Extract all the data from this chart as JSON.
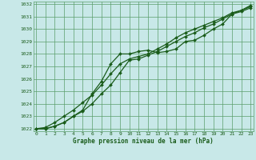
{
  "title": "Graphe pression niveau de la mer (hPa)",
  "background_color": "#c8e8e8",
  "plot_bg_color": "#c8e8e8",
  "grid_color": "#5a9e6a",
  "line_color": "#1a5c1a",
  "marker_color": "#1a5c1a",
  "xlim": [
    -0.3,
    23.3
  ],
  "ylim": [
    1021.8,
    1032.2
  ],
  "xticks": [
    0,
    1,
    2,
    3,
    4,
    5,
    6,
    7,
    8,
    9,
    10,
    11,
    12,
    13,
    14,
    15,
    16,
    17,
    18,
    19,
    20,
    21,
    22,
    23
  ],
  "yticks": [
    1022,
    1023,
    1024,
    1025,
    1026,
    1027,
    1028,
    1029,
    1030,
    1031,
    1032
  ],
  "series1_x": [
    0,
    1,
    2,
    3,
    4,
    5,
    6,
    7,
    8,
    9,
    10,
    11,
    12,
    13,
    14,
    15,
    16,
    17,
    18,
    19,
    20,
    21,
    22,
    23
  ],
  "series1_y": [
    1022.0,
    1022.0,
    1022.2,
    1022.5,
    1023.0,
    1023.5,
    1024.8,
    1025.8,
    1027.2,
    1028.0,
    1028.0,
    1028.2,
    1028.3,
    1028.1,
    1028.2,
    1028.4,
    1029.0,
    1029.1,
    1029.5,
    1030.0,
    1030.4,
    1031.2,
    1031.4,
    1031.7
  ],
  "series2_x": [
    0,
    1,
    2,
    3,
    4,
    5,
    6,
    7,
    8,
    9,
    10,
    11,
    12,
    13,
    14,
    15,
    16,
    17,
    18,
    19,
    20,
    21,
    22,
    23
  ],
  "series2_y": [
    1022.0,
    1022.0,
    1022.2,
    1022.5,
    1023.0,
    1023.4,
    1024.0,
    1024.8,
    1025.5,
    1026.5,
    1027.5,
    1027.6,
    1027.9,
    1028.2,
    1028.6,
    1029.0,
    1029.4,
    1029.7,
    1030.1,
    1030.4,
    1030.8,
    1031.2,
    1031.5,
    1031.8
  ],
  "series3_x": [
    0,
    1,
    2,
    3,
    4,
    5,
    6,
    7,
    8,
    9,
    10,
    11,
    12,
    13,
    14,
    15,
    16,
    17,
    18,
    19,
    20,
    21,
    22,
    23
  ],
  "series3_y": [
    1022.0,
    1022.1,
    1022.5,
    1023.0,
    1023.5,
    1024.1,
    1024.7,
    1025.5,
    1026.4,
    1027.2,
    1027.6,
    1027.8,
    1028.0,
    1028.4,
    1028.8,
    1029.3,
    1029.7,
    1030.0,
    1030.3,
    1030.6,
    1030.9,
    1031.3,
    1031.5,
    1031.9
  ]
}
